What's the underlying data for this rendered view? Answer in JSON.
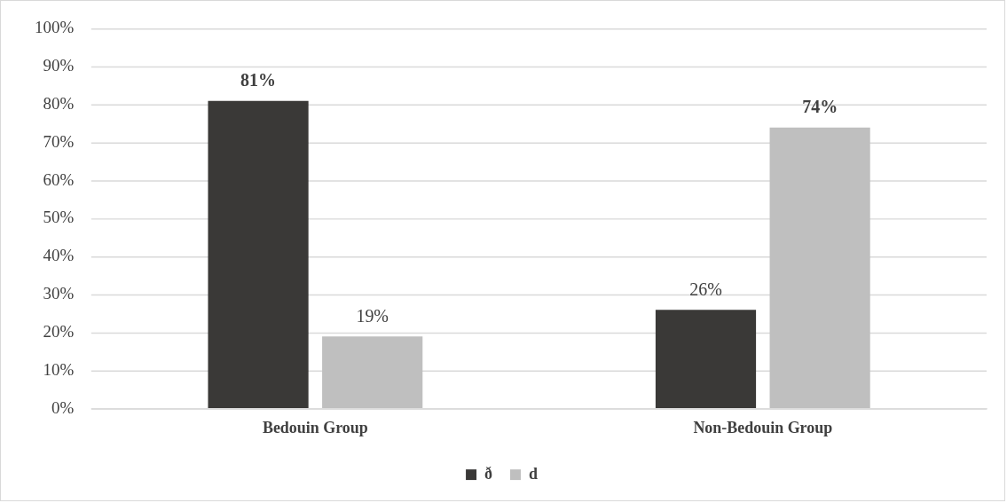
{
  "chart_data": {
    "type": "bar",
    "categories": [
      "Bedouin Group",
      "Non-Bedouin Group"
    ],
    "series": [
      {
        "name": "ð",
        "color": "#3a3937",
        "values": [
          81,
          26
        ],
        "value_labels": [
          "81%",
          "26%"
        ]
      },
      {
        "name": "d",
        "color": "#bfbfbf",
        "values": [
          19,
          74
        ],
        "value_labels": [
          "19%",
          "74%"
        ]
      }
    ],
    "ylim": [
      0,
      100
    ],
    "yticks": [
      {
        "value": 0,
        "label": "0%"
      },
      {
        "value": 10,
        "label": "10%"
      },
      {
        "value": 20,
        "label": "20%"
      },
      {
        "value": 30,
        "label": "30%"
      },
      {
        "value": 40,
        "label": "40%"
      },
      {
        "value": 50,
        "label": "50%"
      },
      {
        "value": 60,
        "label": "60%"
      },
      {
        "value": 70,
        "label": "70%"
      },
      {
        "value": 80,
        "label": "80%"
      },
      {
        "value": 90,
        "label": "90%"
      },
      {
        "value": 100,
        "label": "100%"
      }
    ],
    "grid": "y",
    "legend": "bottom"
  }
}
